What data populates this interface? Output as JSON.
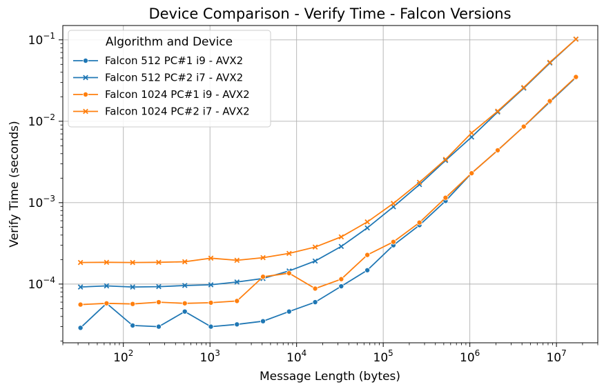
{
  "chart_data": {
    "type": "line",
    "title": "Device Comparison - Verify Time - Falcon Versions",
    "xlabel": "Message Length (bytes)",
    "ylabel": "Verify Time (seconds)",
    "xscale": "log",
    "yscale": "log",
    "grid": true,
    "xlim": [
      20,
      30000000
    ],
    "ylim": [
      1.9e-05,
      0.15
    ],
    "x_ticks": [
      {
        "value": 100,
        "base": "10",
        "exp": "2"
      },
      {
        "value": 1000,
        "base": "10",
        "exp": "3"
      },
      {
        "value": 10000,
        "base": "10",
        "exp": "4"
      },
      {
        "value": 100000,
        "base": "10",
        "exp": "5"
      },
      {
        "value": 1000000,
        "base": "10",
        "exp": "6"
      },
      {
        "value": 10000000,
        "base": "10",
        "exp": "7"
      }
    ],
    "y_ticks": [
      {
        "value": 0.0001,
        "base": "10",
        "exp": "−4"
      },
      {
        "value": 0.001,
        "base": "10",
        "exp": "−3"
      },
      {
        "value": 0.01,
        "base": "10",
        "exp": "−2"
      },
      {
        "value": 0.1,
        "base": "10",
        "exp": "−1"
      }
    ],
    "legend": {
      "title": "Algorithm and Device",
      "placement": "top-left"
    },
    "x": [
      32,
      64,
      128,
      256,
      512,
      1024,
      2048,
      4096,
      8192,
      16384,
      32768,
      65536,
      131072,
      262144,
      524288,
      1048576,
      2097152,
      4194304,
      8388608,
      16777216
    ],
    "series": [
      {
        "name": "Falcon 512 PC#1 i9 - AVX2",
        "color": "#1f77b4",
        "marker": "circle",
        "values": [
          2.9e-05,
          5.8e-05,
          3.1e-05,
          3e-05,
          4.6e-05,
          3e-05,
          3.2e-05,
          3.5e-05,
          4.6e-05,
          6e-05,
          9.4e-05,
          0.000148,
          0.0003,
          0.00053,
          0.00105,
          0.0023,
          0.0044,
          0.0086,
          0.0173,
          0.0345
        ]
      },
      {
        "name": "Falcon 512 PC#2 i7 - AVX2",
        "color": "#1f77b4",
        "marker": "x",
        "values": [
          9.2e-05,
          9.5e-05,
          9.2e-05,
          9.3e-05,
          9.6e-05,
          9.8e-05,
          0.000106,
          0.000117,
          0.000145,
          0.000192,
          0.00029,
          0.00049,
          0.00089,
          0.00167,
          0.0033,
          0.0064,
          0.013,
          0.0255,
          0.052,
          0.102
        ]
      },
      {
        "name": "Falcon 1024 PC#1 i9 - AVX2",
        "color": "#ff7f0e",
        "marker": "circle",
        "values": [
          5.6e-05,
          5.8e-05,
          5.7e-05,
          6e-05,
          5.8e-05,
          5.9e-05,
          6.2e-05,
          0.000123,
          0.000136,
          8.8e-05,
          0.000115,
          0.000228,
          0.00033,
          0.00057,
          0.00115,
          0.0023,
          0.0044,
          0.0086,
          0.0177,
          0.035
        ]
      },
      {
        "name": "Falcon 1024 PC#2 i7 - AVX2",
        "color": "#ff7f0e",
        "marker": "x",
        "values": [
          0.000184,
          0.000185,
          0.000184,
          0.000185,
          0.000188,
          0.000208,
          0.000196,
          0.000211,
          0.000238,
          0.000285,
          0.00038,
          0.00058,
          0.00098,
          0.00178,
          0.0034,
          0.0072,
          0.0133,
          0.026,
          0.053,
          0.102
        ]
      }
    ]
  }
}
